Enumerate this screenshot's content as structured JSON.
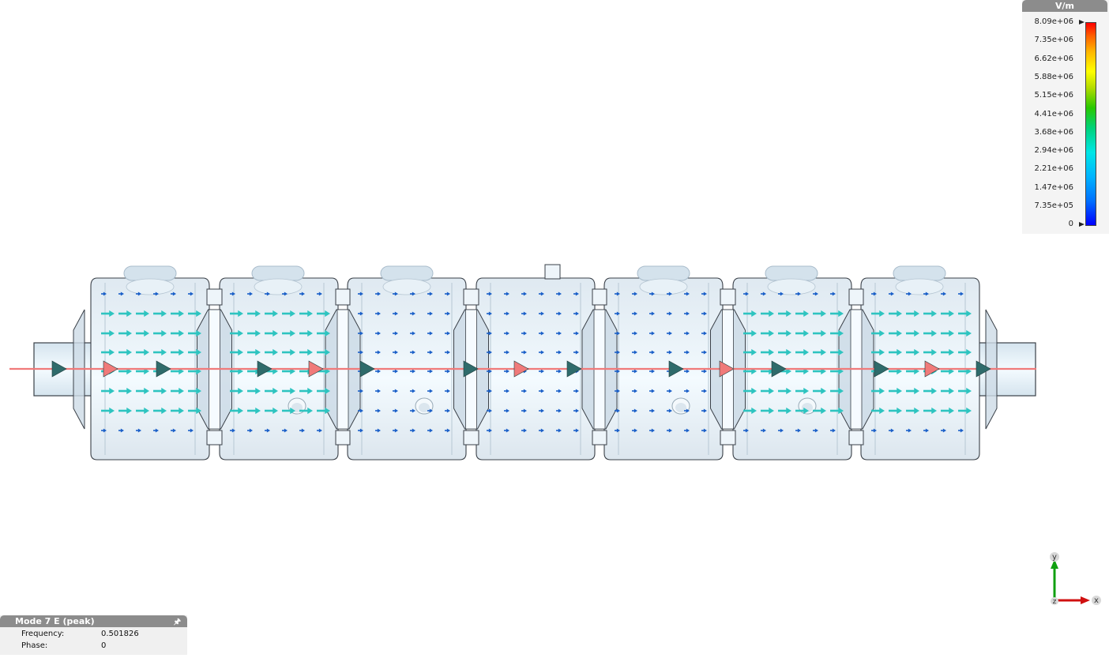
{
  "legend": {
    "unit": "V/m",
    "labels": [
      "8.09e+06",
      "7.35e+06",
      "6.62e+06",
      "5.88e+06",
      "5.15e+06",
      "4.41e+06",
      "3.68e+06",
      "2.94e+06",
      "2.21e+06",
      "1.47e+06",
      "7.35e+05",
      "0"
    ]
  },
  "info": {
    "title": "Mode 7 E (peak)",
    "frequency_label": "Frequency:",
    "frequency_value": "0.501826",
    "phase_label": "Phase:",
    "phase_value": "0"
  },
  "axes": {
    "x": "x",
    "y": "y",
    "z": "z"
  },
  "colors": {
    "beam_line": "#f07a7a",
    "strong_arrow": "#2ec4c0",
    "weak_arrow": "#1a5fc8",
    "cavity_fill": "#e4eef5",
    "cavity_outline": "#3a4048"
  },
  "field": {
    "cells": [
      {
        "name": "cell-1",
        "strength": 0.45
      },
      {
        "name": "cell-2",
        "strength": 0.45
      },
      {
        "name": "cell-3",
        "strength": 0.1
      },
      {
        "name": "cell-4",
        "strength": 0.05
      },
      {
        "name": "cell-5",
        "strength": 0.1
      },
      {
        "name": "cell-6",
        "strength": 0.45
      },
      {
        "name": "cell-7",
        "strength": 0.45
      }
    ],
    "max_value": "8.09e+06"
  }
}
